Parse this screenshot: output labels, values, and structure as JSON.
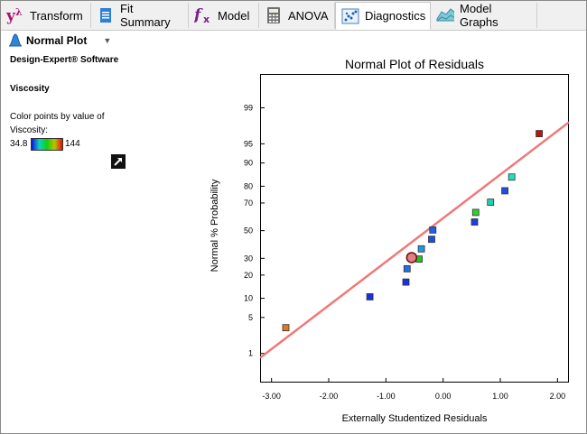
{
  "tabs": [
    {
      "label": "Transform",
      "icon": "lambda-icon"
    },
    {
      "label": "Fit Summary",
      "icon": "document-icon"
    },
    {
      "label": "Model",
      "icon": "fx-icon"
    },
    {
      "label": "ANOVA",
      "icon": "calculator-icon"
    },
    {
      "label": "Diagnostics",
      "icon": "scatter-icon",
      "active": true
    },
    {
      "label": "Model Graphs",
      "icon": "surface-icon"
    }
  ],
  "plot_selector": {
    "label": "Normal Plot"
  },
  "info": {
    "software": "Design-Expert® Software",
    "response": "Viscosity",
    "color_note_1": "Color points by value of",
    "color_note_2": "Viscosity:",
    "scale_min": "34.8",
    "scale_max": "144"
  },
  "colors": {
    "fit_line": "#f07878",
    "accent": "#0078d7"
  },
  "chart_data": {
    "type": "scatter",
    "title": "Normal Plot of Residuals",
    "xlabel": "Externally Studentized Residuals",
    "ylabel": "Normal % Probability",
    "xlim": [
      -3.2,
      2.2
    ],
    "x_ticks": [
      "-3.00",
      "-2.00",
      "-1.00",
      "0.00",
      "1.00",
      "2.00"
    ],
    "x_tick_values": [
      -3,
      -2,
      -1,
      0,
      1,
      2
    ],
    "y_scale": "normal-probability",
    "y_ticks": [
      "1",
      "5",
      "10",
      "20",
      "30",
      "50",
      "70",
      "80",
      "90",
      "95",
      "99"
    ],
    "y_tick_values": [
      1,
      5,
      10,
      20,
      30,
      50,
      70,
      80,
      90,
      95,
      99
    ],
    "points": [
      {
        "x": -2.75,
        "p": 3.3,
        "color": "#e07820"
      },
      {
        "x": -1.28,
        "p": 10.5,
        "color": "#1c30e0"
      },
      {
        "x": -0.65,
        "p": 16.5,
        "color": "#1c30e0"
      },
      {
        "x": -0.63,
        "p": 23.5,
        "color": "#1c70e8"
      },
      {
        "x": -0.42,
        "p": 29.5,
        "color": "#28c028"
      },
      {
        "x": -0.38,
        "p": 36.5,
        "color": "#2098e0"
      },
      {
        "x": -0.2,
        "p": 43.5,
        "color": "#1c50e0"
      },
      {
        "x": -0.18,
        "p": 50.5,
        "color": "#1c60e8"
      },
      {
        "x": 0.55,
        "p": 56.5,
        "color": "#1c40e0"
      },
      {
        "x": 0.57,
        "p": 63.5,
        "color": "#30d030"
      },
      {
        "x": 0.83,
        "p": 70.5,
        "color": "#20d0b0"
      },
      {
        "x": 1.08,
        "p": 77.5,
        "color": "#1c50e0"
      },
      {
        "x": 1.2,
        "p": 84.5,
        "color": "#20e0c0"
      },
      {
        "x": 1.68,
        "p": 96.7,
        "color": "#c01010"
      }
    ],
    "highlight_point": {
      "x": -0.55,
      "p": 30.5,
      "color": "#e08080"
    },
    "fit_line": {
      "x": [
        -3.2,
        2.2
      ],
      "p": [
        0.8,
        98.0
      ]
    }
  }
}
